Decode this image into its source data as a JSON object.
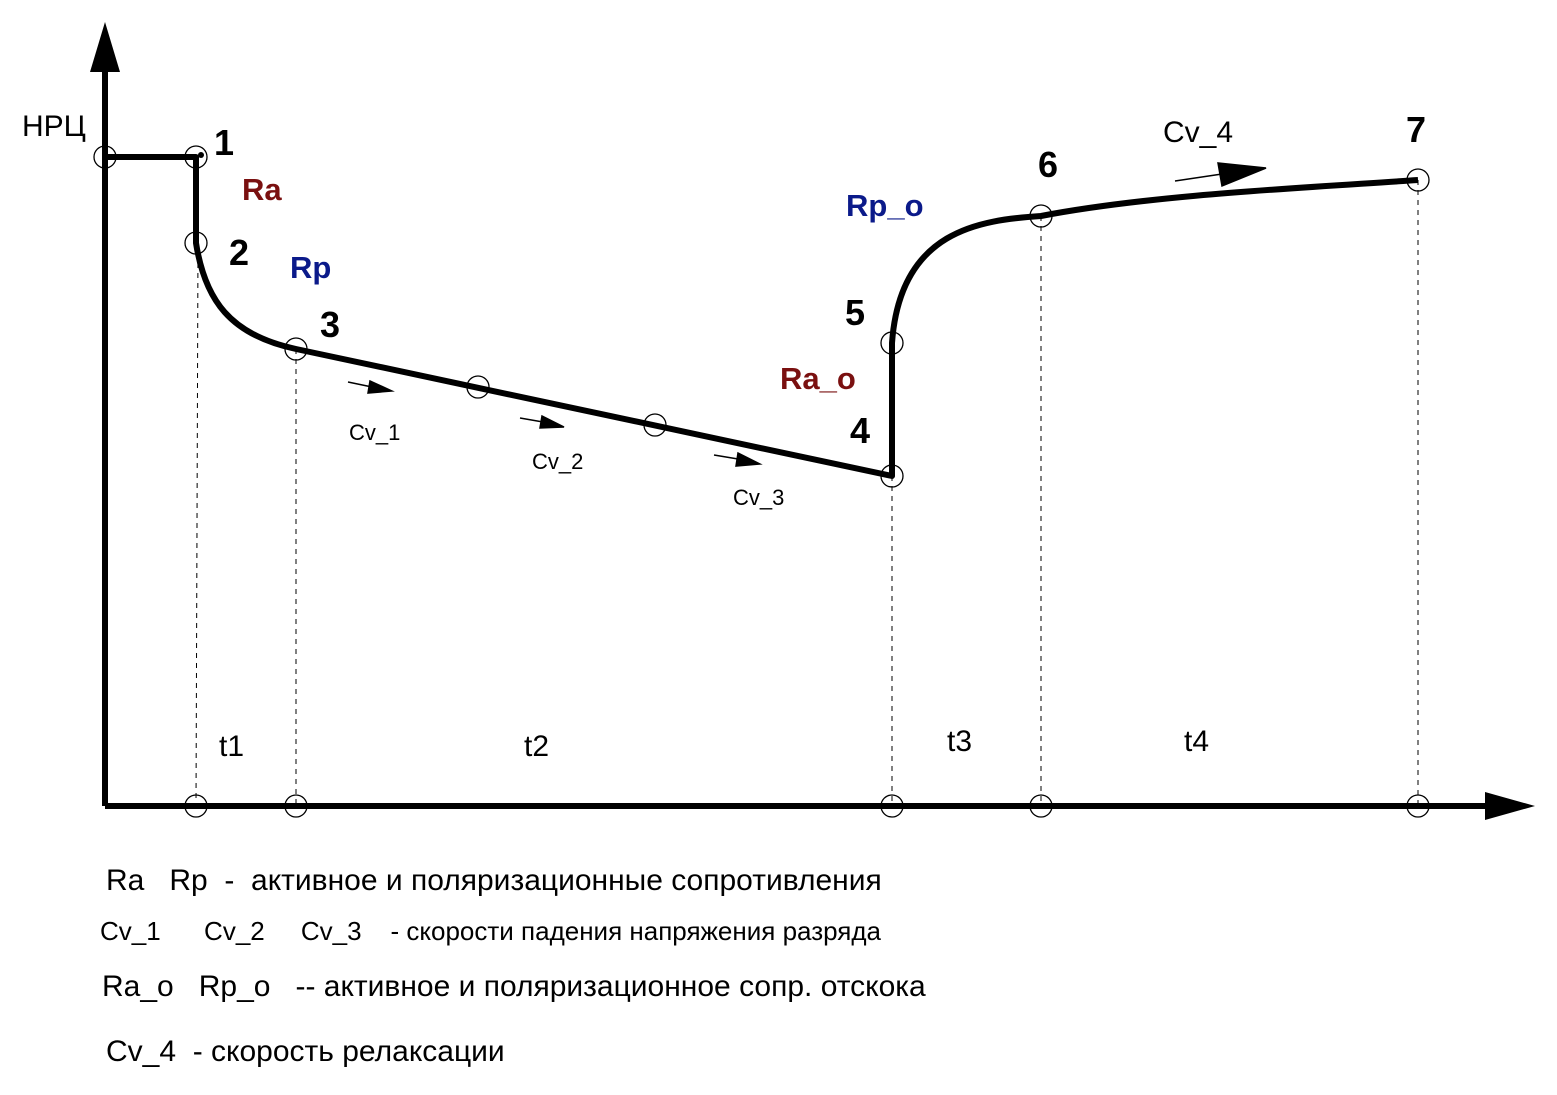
{
  "axis": {
    "y_label": "НРЦ"
  },
  "colors": {
    "line": "#000000",
    "ra": "#7a1010",
    "rp": "#0b1a8a"
  },
  "points": [
    {
      "id": "p1",
      "label": "1"
    },
    {
      "id": "p2",
      "label": "2"
    },
    {
      "id": "p3",
      "label": "3"
    },
    {
      "id": "p4",
      "label": "4"
    },
    {
      "id": "p5",
      "label": "5"
    },
    {
      "id": "p6",
      "label": "6"
    },
    {
      "id": "p7",
      "label": "7"
    }
  ],
  "resistances": {
    "ra": "Ra",
    "rp": "Rp",
    "ra_o": "Ra_o",
    "rp_o": "Rp_o"
  },
  "speeds": {
    "cv1": "Cv_1",
    "cv2": "Cv_2",
    "cv3": "Cv_3",
    "cv4": "Cv_4"
  },
  "intervals": {
    "t1": "t1",
    "t2": "t2",
    "t3": "t3",
    "t4": "t4"
  },
  "legend": {
    "line1": "Ra   Rp  -  активное и поляризационные сопротивления",
    "line2": "Cv_1      Cv_2     Cv_3    - скорости падения напряжения разряда",
    "line3": "Ra_o   Rp_o   -- активное и поляризационное сопр. отскока",
    "line4": "Cv_4  - скорость релаксации"
  }
}
